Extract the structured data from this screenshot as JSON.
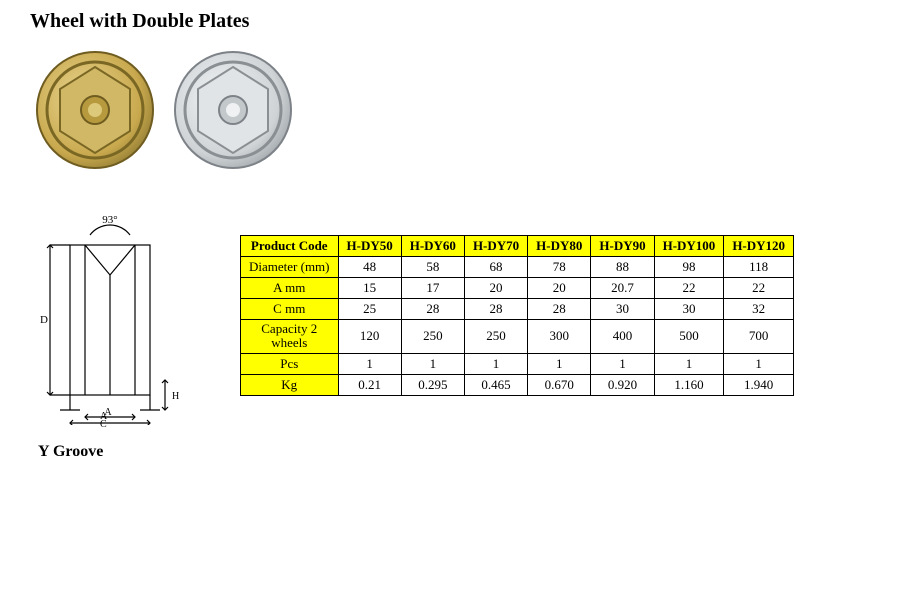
{
  "title": "Wheel with Double Plates",
  "groove_label": "Y Groove",
  "diagram": {
    "angle_label": "93°",
    "dim_A": "A",
    "dim_C": "C",
    "dim_H": "H",
    "dim_D": "D"
  },
  "photos": {
    "wheel_gold": {
      "fill": "#c9a94e",
      "edge": "#8a7630",
      "plate": "#d1b867"
    },
    "wheel_silver": {
      "fill": "#cfd3d6",
      "edge": "#9aa0a4",
      "plate": "#e1e4e6"
    }
  },
  "table": {
    "header_bg": "#ffff00",
    "border_color": "#000000",
    "font_size_pt": 10,
    "columns": [
      "Product Code",
      "H-DY50",
      "H-DY60",
      "H-DY70",
      "H-DY80",
      "H-DY90",
      "H-DY100",
      "H-DY120"
    ],
    "rows": [
      {
        "label": "Diameter (mm)",
        "cells": [
          "48",
          "58",
          "68",
          "78",
          "88",
          "98",
          "118"
        ]
      },
      {
        "label": "A mm",
        "cells": [
          "15",
          "17",
          "20",
          "20",
          "20.7",
          "22",
          "22"
        ]
      },
      {
        "label": "C mm",
        "cells": [
          "25",
          "28",
          "28",
          "28",
          "30",
          "30",
          "32"
        ]
      },
      {
        "label": "Capacity 2\nwheels",
        "cells": [
          "120",
          "250",
          "250",
          "300",
          "400",
          "500",
          "700"
        ]
      },
      {
        "label": "Pcs",
        "cells": [
          "1",
          "1",
          "1",
          "1",
          "1",
          "1",
          "1"
        ]
      },
      {
        "label": "Kg",
        "cells": [
          "0.21",
          "0.295",
          "0.465",
          "0.670",
          "0.920",
          "1.160",
          "1.940"
        ]
      }
    ]
  }
}
